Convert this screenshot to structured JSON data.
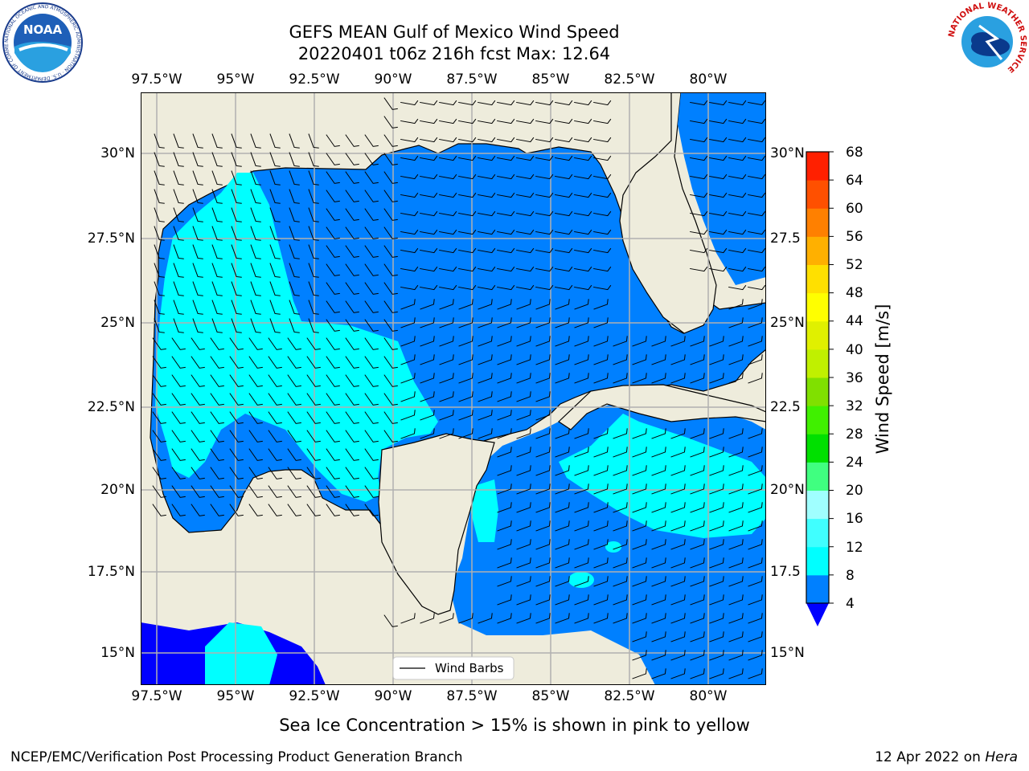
{
  "header": {
    "title_line1": "GEFS MEAN Gulf of Mexico Wind Speed",
    "title_line2": "20220401 t06z 216h fcst   Max: 12.64"
  },
  "logos": {
    "noaa_text": "NOAA",
    "noaa_ring": "NATIONAL OCEANIC AND ATMOSPHERIC ADMINISTRATION · U.S. DEPARTMENT OF COMMERCE",
    "nws_ring": "NATIONAL WEATHER SERVICE"
  },
  "map": {
    "lon_labels": [
      "97.5°W",
      "95°W",
      "92.5°W",
      "90°W",
      "87.5°W",
      "85°W",
      "82.5°W",
      "80°W"
    ],
    "lat_labels_left": [
      "30°N",
      "27.5°N",
      "25°N",
      "22.5°N",
      "20°N",
      "17.5°N",
      "15°N"
    ],
    "lat_labels_right": [
      "30°N",
      "27.5",
      "25°N",
      "22.5",
      "20°N",
      "17.5",
      "15°N"
    ],
    "legend_label": "Wind Barbs",
    "colors": {
      "land": "#eeecdc",
      "ocean_4_8": "#0080ff",
      "ocean_8_12": "#00ffff",
      "ocean_0_4": "#0000ff",
      "grid": "#b0b0b0"
    }
  },
  "colorbar": {
    "label": "Wind Speed [m/s]",
    "ticks": [
      "68",
      "64",
      "60",
      "56",
      "52",
      "48",
      "44",
      "40",
      "36",
      "32",
      "28",
      "24",
      "20",
      "16",
      "12",
      "8",
      "4"
    ],
    "colors": [
      "#0080ff",
      "#00ffff",
      "#40ffff",
      "#a0ffff",
      "#40ff80",
      "#00e000",
      "#40f000",
      "#80e000",
      "#c0f000",
      "#e0f000",
      "#ffff00",
      "#ffe000",
      "#ffb000",
      "#ff8000",
      "#ff5000",
      "#ff2000",
      "#ff0000"
    ],
    "extend_color": "#0000ff"
  },
  "footer": {
    "caption": "Sea Ice Concentration > 15% is shown in pink to yellow",
    "left": "NCEP/EMC/Verification Post Processing Product Generation Branch",
    "date": "12 Apr 2022 on ",
    "machine": "Hera"
  }
}
